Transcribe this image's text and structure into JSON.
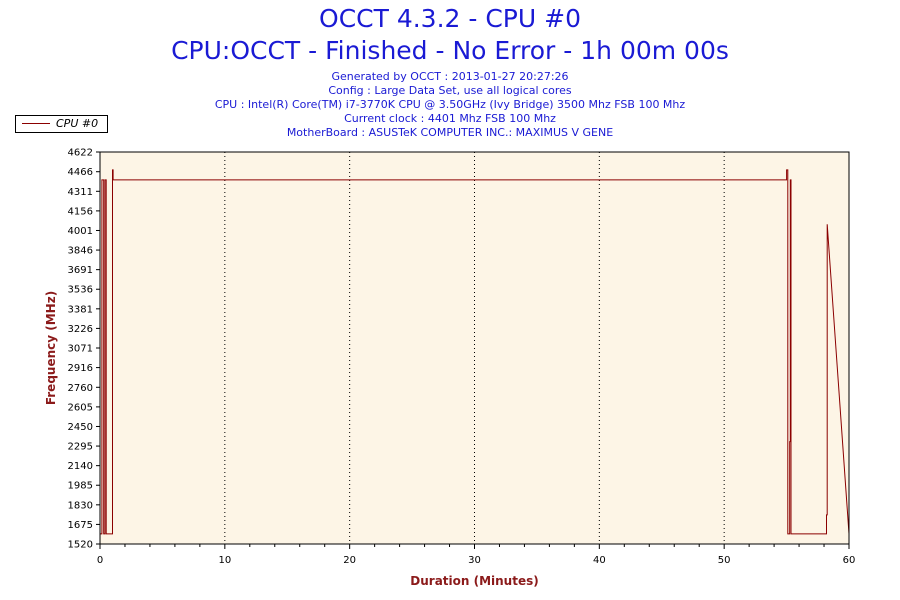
{
  "header": {
    "title": "OCCT 4.3.2 - CPU #0",
    "subtitle": "CPU:OCCT - Finished - No Error - 1h 00m 00s",
    "info_lines": [
      "Generated by OCCT : 2013-01-27 20:27:26",
      "Config : Large Data Set, use all logical cores",
      "CPU : Intel(R) Core(TM) i7-3770K CPU @ 3.50GHz (Ivy Bridge) 3500 Mhz FSB 100 Mhz",
      "Current clock : 4401 Mhz FSB 100 Mhz",
      "MotherBoard : ASUSTeK COMPUTER INC.: MAXIMUS V GENE"
    ]
  },
  "colors": {
    "line": "#8b0000",
    "plot_background": "#fdf5e6",
    "title": "#1a1ad4",
    "axis_title": "#8b1a1a"
  },
  "chart_data": {
    "type": "line",
    "title": "OCCT 4.3.2 - CPU #0",
    "xlabel": "Duration (Minutes)",
    "ylabel": "Frequency (MHz)",
    "xlim": [
      0,
      60
    ],
    "ylim": [
      1520,
      4622
    ],
    "x_ticks": [
      0,
      10,
      20,
      30,
      40,
      50,
      60
    ],
    "y_ticks": [
      1520,
      1675,
      1830,
      1985,
      2140,
      2295,
      2450,
      2605,
      2760,
      2916,
      3071,
      3226,
      3381,
      3536,
      3691,
      3846,
      4001,
      4156,
      4311,
      4466,
      4622
    ],
    "grid": "vertical dotted at major x ticks",
    "legend": "top-left outside plot",
    "series": [
      {
        "name": "CPU #0",
        "x": [
          0.0,
          0.15,
          0.15,
          0.3,
          0.3,
          0.4,
          0.4,
          0.5,
          0.5,
          1.0,
          1.0,
          1.05,
          1.05,
          55.0,
          55.0,
          55.1,
          55.1,
          55.25,
          55.25,
          55.3,
          55.3,
          55.35,
          55.35,
          58.2,
          58.2,
          58.25,
          58.25,
          60.0
        ],
        "values": [
          1600,
          1600,
          4401,
          4401,
          1600,
          1600,
          4401,
          4401,
          1600,
          1600,
          4480,
          4480,
          4401,
          4401,
          4480,
          4480,
          1600,
          1600,
          2330,
          2330,
          4401,
          4401,
          1600,
          1600,
          1750,
          1750,
          4050,
          1600
        ]
      }
    ]
  }
}
